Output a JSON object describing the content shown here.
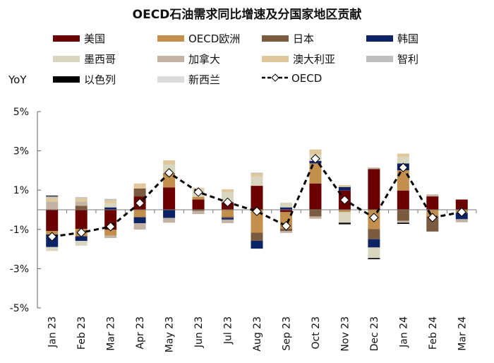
{
  "chart_data": {
    "type": "bar",
    "stacked": true,
    "title": "OECD石油需求同比增速及分国家地区贡献",
    "ylabel": "YoY",
    "ylim": [
      -5,
      5
    ],
    "yticks": [
      5,
      3,
      1,
      -1,
      -3,
      -5
    ],
    "ytick_format": "%",
    "grid": false,
    "legend_placement": "top",
    "categories": [
      "Jan 23",
      "Feb 23",
      "Mar 23",
      "Apr 23",
      "May 23",
      "Jun 23",
      "Jul 23",
      "Aug 23",
      "Sep 23",
      "Oct 23",
      "Nov 23",
      "Dec 23",
      "Jan 24",
      "Feb 24",
      "Mar 24"
    ],
    "series": [
      {
        "name": "美国",
        "color": "#6b0000",
        "values": [
          -1.08,
          -0.98,
          -1.02,
          0.68,
          1.14,
          0.52,
          0.38,
          1.22,
          -0.12,
          1.34,
          0.98,
          2.07,
          0.98,
          0.68,
          0.52
        ]
      },
      {
        "name": "OECD欧洲",
        "color": "#c38f4d",
        "values": [
          -0.18,
          -0.37,
          -0.3,
          -0.38,
          0.66,
          0.14,
          -0.36,
          -1.17,
          -0.84,
          1.02,
          -0.12,
          -0.98,
          1.03,
          -0.34,
          -0.16
        ]
      },
      {
        "name": "日本",
        "color": "#7b5b3f",
        "values": [
          0,
          0.2,
          0,
          0.4,
          0.06,
          -0.06,
          -0.06,
          -0.41,
          -0.12,
          -0.34,
          0,
          -0.52,
          -0.56,
          -0.77,
          0
        ]
      },
      {
        "name": "韩国",
        "color": "#0c2466",
        "values": [
          -0.64,
          -0.24,
          0.12,
          -0.31,
          -0.42,
          0,
          -0.08,
          -0.4,
          0.12,
          0.13,
          0.18,
          -0.42,
          0.35,
          0,
          -0.32
        ]
      },
      {
        "name": "墨西哥",
        "color": "#d8d6bf",
        "values": [
          -0.2,
          -0.24,
          0.2,
          0,
          0.44,
          0.4,
          0.52,
          0.49,
          0.24,
          0.32,
          -0.54,
          -0.54,
          0.34,
          0,
          0
        ]
      },
      {
        "name": "加拿大",
        "color": "#c3b3a4",
        "values": [
          0.42,
          0.22,
          -0.12,
          -0.32,
          -0.24,
          -0.16,
          -0.18,
          0,
          -0.1,
          -0.12,
          0,
          0.08,
          -0.1,
          0.1,
          -0.16
        ]
      },
      {
        "name": "澳大利亚",
        "color": "#e0c89c",
        "values": [
          0.18,
          0.18,
          0.16,
          0.26,
          0.22,
          0.05,
          0.14,
          0.14,
          0,
          0.26,
          0.1,
          0,
          0.16,
          0,
          0
        ]
      },
      {
        "name": "智利",
        "color": "#bdbdbd",
        "values": [
          0.08,
          0.04,
          0.07,
          0,
          0,
          0,
          0,
          0.04,
          0,
          0,
          0,
          0,
          0,
          0,
          0
        ]
      },
      {
        "name": "以色列",
        "color": "#000000",
        "values": [
          0.04,
          0,
          0,
          0,
          0,
          0,
          0,
          0,
          0,
          0,
          -0.08,
          -0.06,
          -0.06,
          0,
          0
        ]
      },
      {
        "name": "新西兰",
        "color": "#dcdcdc",
        "values": [
          0,
          0,
          0,
          0,
          0,
          0,
          0,
          0,
          0,
          0,
          0,
          0,
          0,
          0,
          0
        ]
      }
    ],
    "line": {
      "name": "OECD",
      "type": "dashed-line-with-diamond-markers",
      "color": "#000000",
      "values": [
        -1.37,
        -1.16,
        -0.86,
        0.34,
        1.88,
        0.9,
        0.38,
        -0.08,
        -0.82,
        2.6,
        0.5,
        -0.4,
        2.15,
        -0.4,
        -0.12
      ]
    }
  }
}
